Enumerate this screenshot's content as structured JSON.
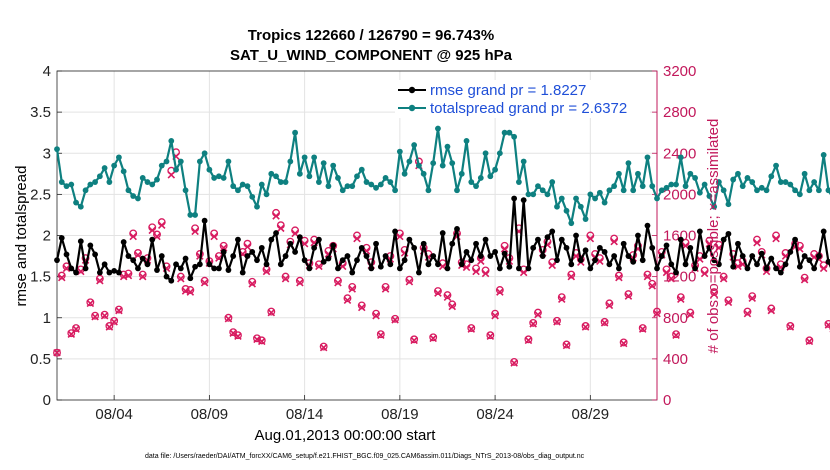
{
  "chart_data": {
    "type": "line",
    "title": "Tropics 122660 / 126790 = 96.743%",
    "subtitle": "SAT_U_WIND_COMPONENT @ 925 hPa",
    "xlabel": "Aug.01,2013 00:00:00 start",
    "ylabel": "rmse and totalspread",
    "y2label": "# of obs: o=possible; ×=assimilated",
    "footnote": "data file: /Users/raeder/DAI/ATM_forcXX/CAM6_setup/f.e21.FHIST_BGC.f09_025.CAM6assim.011/Diags_NTrS_2013-08/obs_diag_output.nc",
    "xlim": [
      1,
      32.5
    ],
    "ylim": [
      0,
      4
    ],
    "y2lim": [
      0,
      3200
    ],
    "xticks": [
      4,
      9,
      14,
      19,
      24,
      29
    ],
    "xtick_labels": [
      "08/04",
      "08/09",
      "08/14",
      "08/19",
      "08/24",
      "08/29"
    ],
    "yticks": [
      0,
      0.5,
      1,
      1.5,
      2,
      2.5,
      3,
      3.5,
      4
    ],
    "ytick_labels": [
      "0",
      "0.5",
      "1",
      "1.5",
      "2",
      "2.5",
      "3",
      "3.5",
      "4"
    ],
    "y2ticks": [
      0,
      400,
      800,
      1200,
      1600,
      2000,
      2400,
      2800,
      3200
    ],
    "y2tick_labels": [
      "0",
      "400",
      "800",
      "1200",
      "1600",
      "2000",
      "2400",
      "2800",
      "3200"
    ],
    "legend_position": "top-right",
    "x_start": 1.0,
    "x_step": 0.25,
    "series": [
      {
        "name": "rmse grand pr = 1.8227",
        "color": "#000000",
        "marker": "filled-circle",
        "values": [
          1.7,
          1.97,
          1.77,
          1.6,
          1.55,
          1.93,
          1.6,
          1.88,
          1.77,
          1.55,
          1.65,
          1.55,
          1.57,
          1.55,
          1.92,
          1.75,
          1.7,
          1.6,
          1.72,
          1.65,
          1.95,
          1.58,
          1.75,
          1.5,
          1.45,
          1.65,
          1.6,
          1.72,
          1.48,
          1.62,
          1.65,
          2.18,
          1.65,
          1.6,
          1.6,
          1.8,
          1.58,
          1.75,
          1.95,
          1.55,
          1.75,
          1.8,
          1.7,
          1.85,
          1.65,
          1.95,
          2.03,
          1.65,
          1.75,
          1.9,
          1.8,
          1.98,
          1.7,
          1.6,
          1.85,
          1.95,
          1.68,
          1.72,
          1.88,
          1.6,
          1.7,
          1.75,
          1.55,
          1.7,
          1.85,
          1.75,
          1.6,
          1.9,
          1.62,
          1.75,
          1.65,
          2.05,
          1.6,
          1.7,
          1.95,
          1.85,
          1.55,
          1.9,
          1.65,
          1.75,
          1.65,
          2.03,
          1.6,
          1.9,
          2.08,
          1.65,
          1.8,
          1.7,
          1.9,
          1.75,
          1.95,
          1.75,
          1.8,
          1.6,
          1.78,
          1.62,
          2.45,
          1.6,
          2.43,
          1.6,
          1.85,
          1.95,
          1.75,
          1.98,
          2.05,
          1.7,
          1.95,
          1.85,
          1.65,
          2.0,
          1.7,
          1.82,
          1.6,
          1.7,
          1.85,
          1.8,
          1.65,
          1.75,
          1.6,
          1.9,
          1.75,
          1.68,
          2.0,
          1.7,
          2.12,
          1.85,
          1.6,
          1.75,
          1.88,
          1.65,
          1.55,
          1.95,
          1.65,
          1.85,
          1.6,
          2.05,
          1.75,
          1.85,
          1.7,
          1.65,
          1.95,
          2.02,
          1.62,
          1.9,
          1.75,
          1.6,
          1.75,
          1.65,
          1.78,
          1.6,
          1.72,
          1.6,
          1.55,
          1.65,
          1.8,
          1.95,
          1.62,
          1.75,
          1.7,
          1.6,
          1.75,
          2.05,
          1.68,
          1.55,
          1.85,
          2.05,
          1.75,
          1.6,
          1.85,
          1.8,
          1.85,
          1.85,
          1.85,
          1.85,
          1.97,
          1.92,
          1.75,
          1.53
        ]
      },
      {
        "name": "totalspread grand pr = 2.6372",
        "color": "#0e8080",
        "marker": "filled-circle",
        "values": [
          3.05,
          2.65,
          2.6,
          2.62,
          2.4,
          2.35,
          2.55,
          2.62,
          2.65,
          2.72,
          2.82,
          2.65,
          2.85,
          2.95,
          2.78,
          2.55,
          2.48,
          2.45,
          2.7,
          2.65,
          2.62,
          2.68,
          2.85,
          2.9,
          3.15,
          2.8,
          2.9,
          2.55,
          2.25,
          2.25,
          2.9,
          3.0,
          2.8,
          2.7,
          2.72,
          2.7,
          2.9,
          2.6,
          2.55,
          2.62,
          2.6,
          2.47,
          2.35,
          2.62,
          2.5,
          2.75,
          2.72,
          2.65,
          2.65,
          2.9,
          3.25,
          2.75,
          2.95,
          2.72,
          2.95,
          2.65,
          2.88,
          2.6,
          2.85,
          2.7,
          2.55,
          2.6,
          2.6,
          2.72,
          2.8,
          2.65,
          2.62,
          2.58,
          2.62,
          2.7,
          2.65,
          2.55,
          3.02,
          2.75,
          2.9,
          3.1,
          2.85,
          2.75,
          2.55,
          2.88,
          3.3,
          2.85,
          3.08,
          2.88,
          2.55,
          2.75,
          3.15,
          2.65,
          2.6,
          2.7,
          3.0,
          2.72,
          2.8,
          3.0,
          3.25,
          3.25,
          3.2,
          2.65,
          2.9,
          2.5,
          2.5,
          2.6,
          2.55,
          2.5,
          2.65,
          2.35,
          2.45,
          2.3,
          2.15,
          2.45,
          2.35,
          2.2,
          2.5,
          2.45,
          2.52,
          2.4,
          2.55,
          2.6,
          2.75,
          2.55,
          2.88,
          2.55,
          2.75,
          2.6,
          2.95,
          2.6,
          2.45,
          2.55,
          2.58,
          2.62,
          2.62,
          2.95,
          2.6,
          2.75,
          2.7,
          2.52,
          2.62,
          2.48,
          2.35,
          2.65,
          2.55,
          2.38,
          2.68,
          2.75,
          2.6,
          2.7,
          2.65,
          2.55,
          2.58,
          2.55,
          2.72,
          2.85,
          2.65,
          2.65,
          2.62,
          2.55,
          2.5,
          2.75,
          2.55,
          2.65,
          2.55,
          2.98,
          2.55,
          2.45,
          2.6,
          2.65,
          2.7,
          2.68,
          2.55,
          2.62,
          2.4,
          2.5,
          2.45,
          2.5,
          2.22,
          2.2,
          2.3,
          2.42
        ]
      },
      {
        "name": "# of obs possible",
        "axis": "right",
        "color": "#d81b60",
        "marker": "open-circle",
        "values": [
          460,
          1210,
          1300,
          650,
          700,
          1270,
          1380,
          950,
          820,
          1180,
          830,
          720,
          770,
          880,
          1220,
          1230,
          1620,
          1430,
          1220,
          1380,
          1680,
          1610,
          1730,
          1300,
          2230,
          2410,
          1200,
          1080,
          1070,
          1670,
          1420,
          1160,
          1350,
          1620,
          1400,
          1500,
          800,
          660,
          630,
          1440,
          1520,
          1150,
          600,
          580,
          1270,
          860,
          1820,
          1700,
          1200,
          1540,
          1650,
          1160,
          1550,
          1330,
          1560,
          1320,
          520,
          1450,
          1500,
          1160,
          1330,
          990,
          1100,
          1600,
          920,
          1480,
          1340,
          840,
          640,
          1100,
          1400,
          790,
          1620,
          1460,
          1170,
          590,
          2320,
          1480,
          1420,
          610,
          1060,
          1330,
          1020,
          930,
          1620,
          1340,
          1320,
          700,
          1280,
          1380,
          1260,
          630,
          840,
          1070,
          1500,
          1380,
          370,
          1670,
          1270,
          590,
          750,
          850,
          1460,
          1540,
          1340,
          770,
          1000,
          540,
          1220,
          1430,
          1370,
          720,
          1600,
          1420,
          1380,
          760,
          940,
          1570,
          1210,
          560,
          1030,
          1410,
          1500,
          700,
          1220,
          1130,
          860,
          1440,
          1270,
          1200,
          640,
          1000,
          1530,
          850,
          1310,
          1400,
          1260,
          1550,
          1050,
          1510,
          1200,
          970,
          1420,
          1330,
          1350,
          860,
          1010,
          1560,
          1440,
          1280,
          890,
          1600,
          1320,
          1430,
          720,
          1520,
          1500,
          1190,
          580,
          1420,
          1400,
          1310,
          740,
          700,
          1380,
          1300,
          900,
          1420,
          560,
          1550,
          1390,
          810,
          850,
          0
        ]
      },
      {
        "name": "# of obs assimilated",
        "axis": "right",
        "color": "#d81b60",
        "marker": "x",
        "values": [
          460,
          1190,
          1280,
          640,
          690,
          1250,
          1360,
          940,
          810,
          1160,
          820,
          710,
          760,
          870,
          1200,
          1210,
          1590,
          1410,
          1200,
          1360,
          1650,
          1590,
          1700,
          1280,
          2190,
          2370,
          1180,
          1060,
          1050,
          1640,
          1400,
          1140,
          1330,
          1590,
          1380,
          1480,
          790,
          650,
          620,
          1420,
          1490,
          1130,
          590,
          570,
          1250,
          850,
          1790,
          1670,
          1180,
          1510,
          1620,
          1140,
          1520,
          1310,
          1530,
          1300,
          510,
          1420,
          1470,
          1140,
          1300,
          970,
          1080,
          1570,
          900,
          1450,
          1310,
          820,
          630,
          1080,
          1370,
          780,
          1590,
          1430,
          1150,
          580,
          2280,
          1450,
          1390,
          600,
          1040,
          1300,
          1000,
          910,
          1590,
          1310,
          1290,
          690,
          1250,
          1350,
          1230,
          620,
          820,
          1050,
          1470,
          1350,
          360,
          1640,
          1240,
          580,
          740,
          830,
          1430,
          1510,
          1310,
          760,
          980,
          530,
          1200,
          1400,
          1340,
          710,
          1570,
          1390,
          1350,
          750,
          920,
          1540,
          1190,
          550,
          1010,
          1380,
          1470,
          690,
          1200,
          1110,
          840,
          1410,
          1240,
          1180,
          630,
          980,
          1500,
          830,
          1280,
          1370,
          1230,
          1520,
          1030,
          1480,
          1180,
          950,
          1390,
          1300,
          1320,
          840,
          990,
          1530,
          1410,
          1250,
          870,
          1570,
          1290,
          1400,
          710,
          1490,
          1470,
          1170,
          570,
          1390,
          1370,
          1280,
          730,
          690,
          1350,
          1270,
          880,
          1390,
          550,
          1520,
          1360,
          790,
          830,
          0
        ]
      }
    ]
  }
}
